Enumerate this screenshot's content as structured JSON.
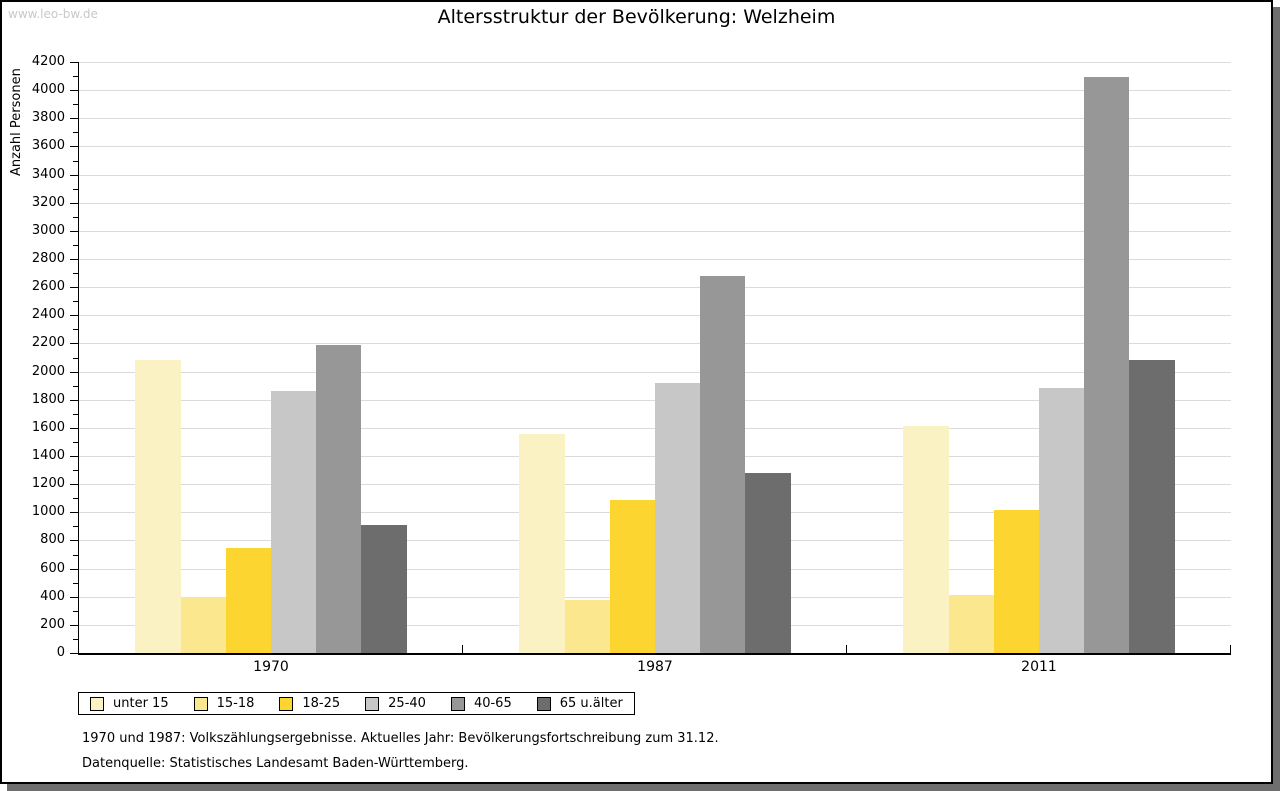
{
  "page": {
    "watermark": "www.leo-bw.de"
  },
  "chart_data": {
    "type": "bar",
    "title": "Altersstruktur der Bevölkerung: Welzheim",
    "ylabel": "Anzahl Personen",
    "xlabel": "",
    "categories": [
      "1970",
      "1987",
      "2011"
    ],
    "series": [
      {
        "name": "unter 15",
        "color": "#FBF2C4",
        "values": [
          2080,
          1560,
          1610
        ]
      },
      {
        "name": "15-18",
        "color": "#FBE88E",
        "values": [
          395,
          380,
          410
        ]
      },
      {
        "name": "18-25",
        "color": "#FCD530",
        "values": [
          745,
          1090,
          1015
        ]
      },
      {
        "name": "25-40",
        "color": "#C7C7C7",
        "values": [
          1860,
          1920,
          1880
        ]
      },
      {
        "name": "40-65",
        "color": "#979797",
        "values": [
          2190,
          2680,
          4090
        ]
      },
      {
        "name": "65 u.älter",
        "color": "#6D6D6D",
        "values": [
          910,
          1280,
          2085
        ]
      }
    ],
    "ylim": [
      0,
      4200
    ],
    "ytick_major": 200,
    "ytick_minor": 100,
    "grid": true,
    "grid_color": "#DBDBDB",
    "axis_color": "#000000",
    "legend_position": "bottom-left"
  },
  "footnotes": {
    "line1": "1970 und 1987: Volkszählungsergebnisse. Aktuelles Jahr: Bevölkerungsfortschreibung zum 31.12.",
    "line2": "Datenquelle: Statistisches Landesamt Baden-Württemberg."
  }
}
